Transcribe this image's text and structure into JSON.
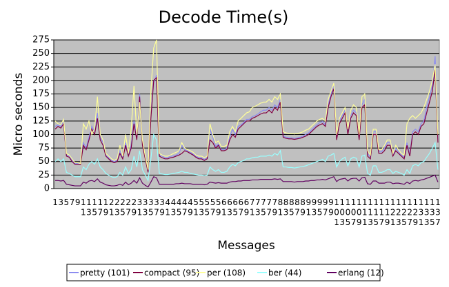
{
  "chart_data": {
    "type": "line",
    "title": "Decode Time(s)",
    "x_label": "Messages",
    "y_label": "Micro seconds",
    "categories": [
      "1",
      null,
      "3",
      null,
      "5",
      null,
      "7",
      null,
      "9",
      null,
      "11",
      null,
      "13",
      null,
      "15",
      null,
      "17",
      null,
      "19",
      null,
      "21",
      null,
      "23",
      null,
      "25",
      null,
      "27",
      null,
      "29",
      null,
      "31",
      null,
      "33",
      null,
      "35",
      null,
      "37",
      null,
      "39",
      null,
      "41",
      null,
      "43",
      null,
      "45",
      null,
      "47",
      null,
      "49",
      null,
      "51",
      null,
      "53",
      null,
      "55",
      null,
      "57",
      null,
      "59",
      null,
      "61",
      null,
      "63",
      null,
      "65",
      null,
      "67",
      null,
      "69",
      null,
      "71",
      null,
      "73",
      null,
      "75",
      null,
      "77",
      null,
      "79",
      null,
      "81",
      null,
      "83",
      null,
      "85",
      null,
      "87",
      null,
      "89",
      null,
      "91",
      null,
      "93",
      null,
      "95",
      null,
      "97",
      null,
      "99",
      null,
      "101",
      null,
      "103",
      null,
      "105",
      null,
      "107",
      null,
      "109",
      null,
      "111",
      null,
      "113",
      null,
      "115",
      null,
      "117",
      null,
      "119",
      null,
      "121",
      null,
      "123",
      null,
      "125",
      null,
      "127",
      null,
      "129",
      null,
      "131",
      null,
      "133",
      null,
      "135",
      null,
      "137"
    ],
    "series": [
      {
        "name": "pretty (101)",
        "color": "#8c8cf0",
        "values": [
          115,
          118,
          115,
          125,
          62,
          60,
          52,
          46,
          46,
          45,
          85,
          75,
          95,
          115,
          105,
          140,
          95,
          85,
          62,
          57,
          52,
          50,
          52,
          70,
          58,
          85,
          62,
          80,
          125,
          95,
          175,
          85,
          58,
          32,
          135,
          195,
          210,
          62,
          60,
          57,
          57,
          60,
          60,
          62,
          65,
          80,
          72,
          70,
          67,
          64,
          60,
          57,
          57,
          54,
          57,
          110,
          95,
          78,
          82,
          72,
          72,
          75,
          95,
          110,
          100,
          115,
          118,
          122,
          128,
          128,
          133,
          135,
          138,
          142,
          145,
          145,
          150,
          145,
          155,
          150,
          165,
          97,
          95,
          94,
          94,
          93,
          94,
          95,
          97,
          100,
          103,
          108,
          113,
          118,
          122,
          124,
          118,
          155,
          175,
          190,
          92,
          125,
          135,
          145,
          105,
          135,
          145,
          140,
          95,
          155,
          165,
          65,
          58,
          105,
          105,
          68,
          68,
          75,
          85,
          85,
          62,
          75,
          68,
          62,
          58,
          85,
          62,
          105,
          110,
          105,
          120,
          125,
          150,
          170,
          190,
          245,
          90
        ]
      },
      {
        "name": "compact (95)",
        "color": "#800040",
        "values": [
          110,
          115,
          112,
          120,
          60,
          58,
          50,
          45,
          45,
          44,
          80,
          72,
          90,
          110,
          100,
          130,
          90,
          80,
          60,
          55,
          50,
          48,
          50,
          65,
          55,
          80,
          60,
          75,
          120,
          90,
          170,
          80,
          55,
          30,
          130,
          200,
          205,
          60,
          57,
          55,
          55,
          57,
          58,
          60,
          62,
          65,
          70,
          68,
          65,
          62,
          58,
          55,
          55,
          52,
          55,
          90,
          85,
          75,
          80,
          70,
          70,
          72,
          90,
          100,
          95,
          110,
          115,
          120,
          125,
          125,
          130,
          132,
          135,
          138,
          140,
          140,
          145,
          140,
          150,
          145,
          160,
          95,
          93,
          92,
          92,
          91,
          92,
          93,
          95,
          97,
          100,
          105,
          110,
          115,
          118,
          120,
          115,
          150,
          170,
          185,
          90,
          120,
          130,
          140,
          100,
          130,
          140,
          135,
          90,
          150,
          155,
          60,
          55,
          100,
          100,
          65,
          65,
          70,
          80,
          80,
          60,
          70,
          65,
          60,
          55,
          80,
          60,
          100,
          105,
          100,
          115,
          120,
          140,
          160,
          180,
          220,
          85
        ]
      },
      {
        "name": "per (108)",
        "color": "#ffff99",
        "values": [
          125,
          120,
          118,
          128,
          65,
          62,
          55,
          48,
          48,
          46,
          120,
          110,
          125,
          100,
          110,
          170,
          100,
          90,
          65,
          60,
          55,
          52,
          55,
          80,
          60,
          100,
          65,
          110,
          190,
          100,
          160,
          90,
          60,
          35,
          180,
          260,
          275,
          65,
          62,
          60,
          60,
          62,
          65,
          67,
          70,
          85,
          75,
          72,
          70,
          67,
          62,
          60,
          60,
          57,
          60,
          120,
          100,
          85,
          88,
          78,
          78,
          80,
          105,
          115,
          105,
          125,
          130,
          135,
          140,
          142,
          150,
          152,
          155,
          158,
          160,
          160,
          165,
          160,
          170,
          165,
          175,
          105,
          103,
          102,
          102,
          101,
          102,
          103,
          105,
          108,
          110,
          115,
          120,
          125,
          128,
          130,
          125,
          165,
          180,
          195,
          100,
          130,
          140,
          150,
          110,
          145,
          155,
          150,
          100,
          170,
          175,
          70,
          62,
          110,
          110,
          72,
          72,
          80,
          90,
          90,
          65,
          80,
          72,
          65,
          62,
          120,
          130,
          135,
          130,
          135,
          140,
          150,
          165,
          180,
          200,
          230,
          100
        ]
      },
      {
        "name": "ber (44)",
        "color": "#99ffff",
        "values": [
          50,
          55,
          50,
          55,
          30,
          28,
          25,
          22,
          22,
          22,
          40,
          35,
          45,
          50,
          45,
          55,
          40,
          35,
          28,
          25,
          22,
          20,
          22,
          30,
          25,
          40,
          28,
          35,
          60,
          40,
          70,
          35,
          25,
          15,
          55,
          100,
          90,
          28,
          27,
          26,
          26,
          27,
          28,
          29,
          30,
          32,
          30,
          30,
          28,
          27,
          26,
          25,
          25,
          24,
          25,
          40,
          35,
          32,
          35,
          30,
          30,
          32,
          40,
          45,
          42,
          48,
          50,
          52,
          55,
          55,
          57,
          58,
          58,
          60,
          60,
          60,
          62,
          60,
          65,
          62,
          70,
          40,
          40,
          39,
          39,
          38,
          39,
          40,
          41,
          42,
          44,
          46,
          48,
          50,
          52,
          54,
          50,
          60,
          62,
          65,
          40,
          50,
          55,
          58,
          42,
          55,
          58,
          56,
          40,
          60,
          62,
          28,
          25,
          42,
          42,
          30,
          30,
          32,
          35,
          35,
          28,
          32,
          30,
          28,
          25,
          35,
          28,
          42,
          45,
          42,
          48,
          50,
          58,
          65,
          75,
          85,
          35
        ]
      },
      {
        "name": "erlang (12)",
        "color": "#600060",
        "values": [
          15,
          15,
          14,
          15,
          8,
          7,
          6,
          5,
          5,
          5,
          12,
          10,
          14,
          15,
          13,
          18,
          12,
          10,
          7,
          6,
          5,
          5,
          6,
          8,
          6,
          12,
          7,
          10,
          15,
          10,
          20,
          10,
          6,
          3,
          12,
          22,
          20,
          8,
          8,
          8,
          8,
          8,
          8,
          9,
          9,
          10,
          9,
          9,
          9,
          8,
          8,
          8,
          8,
          7,
          8,
          12,
          11,
          10,
          11,
          10,
          10,
          10,
          12,
          13,
          13,
          14,
          14,
          15,
          15,
          15,
          16,
          16,
          16,
          17,
          17,
          17,
          17,
          17,
          18,
          17,
          18,
          13,
          13,
          13,
          13,
          12,
          13,
          13,
          13,
          14,
          14,
          15,
          15,
          16,
          16,
          17,
          16,
          18,
          20,
          22,
          13,
          17,
          18,
          19,
          14,
          18,
          19,
          19,
          14,
          20,
          21,
          9,
          8,
          14,
          14,
          10,
          10,
          10,
          12,
          12,
          9,
          10,
          10,
          9,
          8,
          12,
          9,
          14,
          15,
          14,
          16,
          17,
          19,
          21,
          23,
          25,
          12
        ]
      }
    ],
    "ylim": [
      0,
      275
    ],
    "yticks": [
      0,
      25,
      50,
      75,
      100,
      125,
      150,
      175,
      200,
      225,
      250,
      275
    ],
    "grid": true,
    "plot_background": "#c0c0c0",
    "legend": "bottom"
  }
}
